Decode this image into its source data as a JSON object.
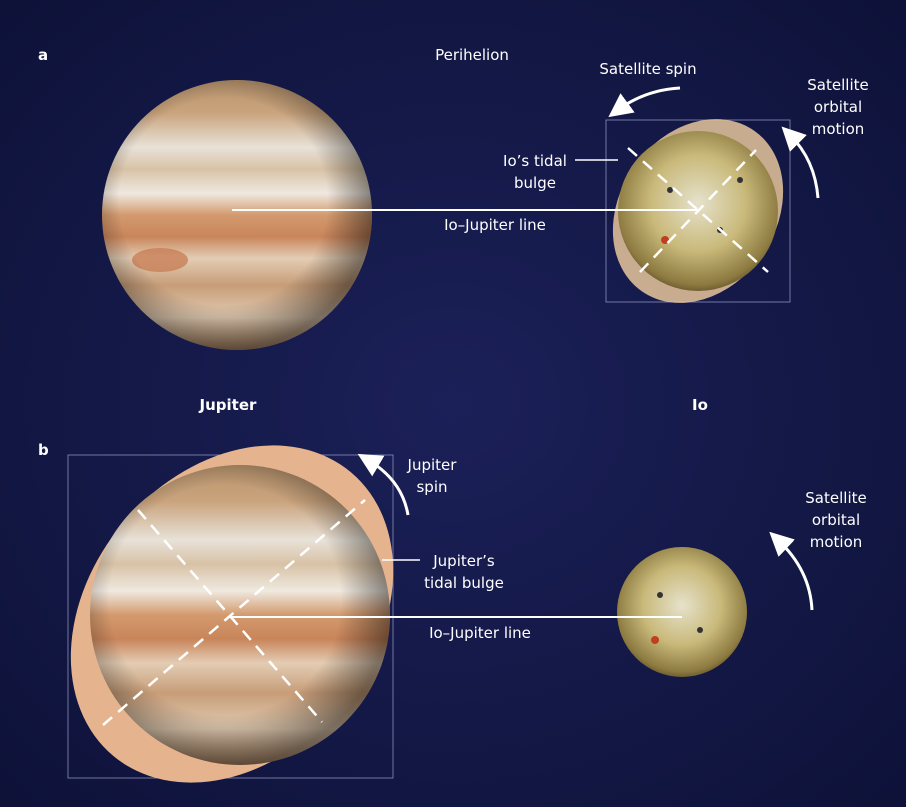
{
  "panel_a": {
    "label": "a",
    "perihelion": "Perihelion",
    "satellite_spin": "Satellite spin",
    "orbital_motion": [
      "Satellite",
      "orbital",
      "motion"
    ],
    "tidal_bulge": [
      "Io’s tidal",
      "bulge"
    ],
    "line_label": "Io–Jupiter line",
    "jupiter_label": "Jupiter",
    "io_label": "Io"
  },
  "panel_b": {
    "label": "b",
    "jupiter_spin": [
      "Jupiter",
      "spin"
    ],
    "orbital_motion": [
      "Satellite",
      "orbital",
      "motion"
    ],
    "tidal_bulge": [
      "Jupiter’s",
      "tidal bulge"
    ],
    "line_label": "Io–Jupiter line"
  }
}
